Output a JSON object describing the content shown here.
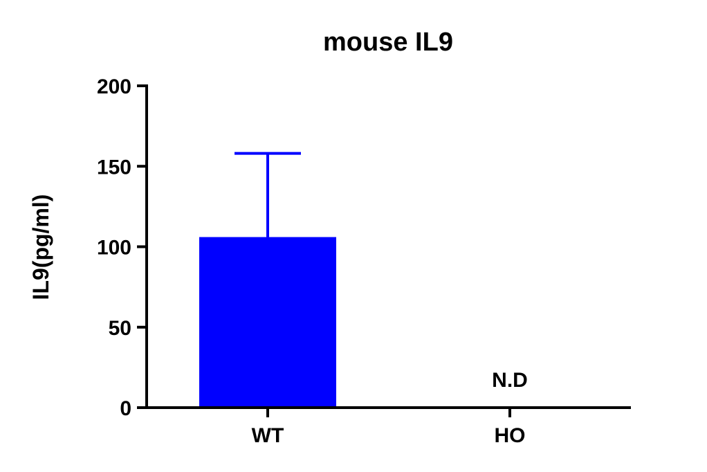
{
  "chart_data": {
    "type": "bar",
    "title": "mouse IL9",
    "xlabel": "",
    "ylabel": "IL9(pg/ml)",
    "categories": [
      "WT",
      "HO"
    ],
    "values": [
      106,
      0
    ],
    "error_upper": [
      158,
      null
    ],
    "annotations": [
      "",
      "N.D"
    ],
    "ylim": [
      0,
      200
    ],
    "yticks": [
      0,
      50,
      100,
      150,
      200
    ],
    "bar_color": "#0000ff",
    "grid": false,
    "legend": "none"
  }
}
